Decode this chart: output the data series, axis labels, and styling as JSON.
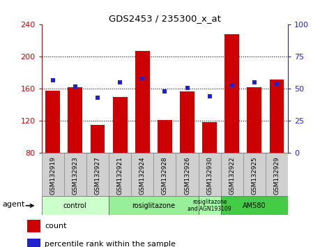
{
  "title": "GDS2453 / 235300_x_at",
  "samples": [
    "GSM132919",
    "GSM132923",
    "GSM132927",
    "GSM132921",
    "GSM132924",
    "GSM132928",
    "GSM132926",
    "GSM132930",
    "GSM132922",
    "GSM132925",
    "GSM132929"
  ],
  "counts": [
    158,
    162,
    115,
    150,
    207,
    121,
    157,
    119,
    228,
    162,
    172
  ],
  "percentiles": [
    57,
    52,
    43,
    55,
    58,
    48,
    51,
    44,
    53,
    55,
    54
  ],
  "ylim_left": [
    80,
    240
  ],
  "ylim_right": [
    0,
    100
  ],
  "yticks_left": [
    80,
    120,
    160,
    200,
    240
  ],
  "yticks_right": [
    0,
    25,
    50,
    75,
    100
  ],
  "bar_color": "#cc0000",
  "dot_color": "#2222cc",
  "groups": [
    {
      "label": "control",
      "start": 0,
      "end": 3,
      "color": "#ccffcc"
    },
    {
      "label": "rosiglitazone",
      "start": 3,
      "end": 7,
      "color": "#99ee99"
    },
    {
      "label": "rosiglitazone\nand AGN193109",
      "start": 7,
      "end": 8,
      "color": "#aaffaa"
    },
    {
      "label": "AM580",
      "start": 8,
      "end": 11,
      "color": "#44cc44"
    }
  ],
  "legend_bar_label": "count",
  "legend_dot_label": "percentile rank within the sample",
  "agent_label": "agent"
}
